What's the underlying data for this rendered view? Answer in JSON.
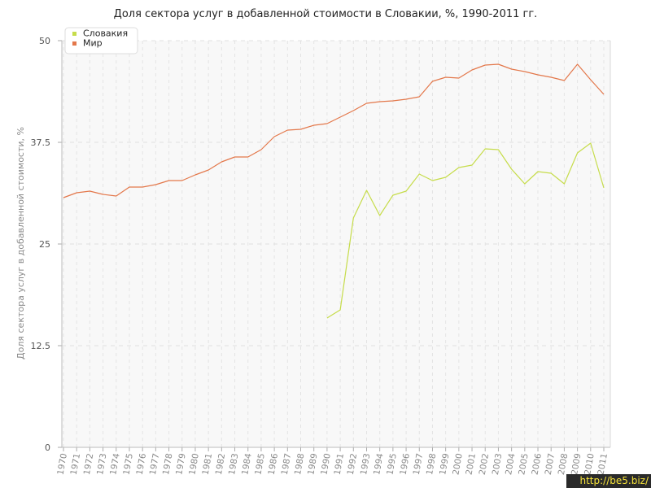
{
  "title": "Доля сектора услуг в добавленной стоимости в Словакии, %, 1990-2011 гг.",
  "watermark": "http://be5.biz/",
  "chart_data": {
    "type": "line",
    "title": "Доля сектора услуг в добавленной стоимости в Словакии, %, 1990-2011 гг.",
    "ylabel": "Доля сектора услуг в добавленной стоимости, %",
    "xlabel": "",
    "x": [
      1970,
      1971,
      1972,
      1973,
      1974,
      1975,
      1976,
      1977,
      1978,
      1979,
      1980,
      1981,
      1982,
      1983,
      1984,
      1985,
      1986,
      1987,
      1988,
      1989,
      1990,
      1991,
      1992,
      1993,
      1994,
      1995,
      1996,
      1997,
      1998,
      1999,
      2000,
      2001,
      2002,
      2003,
      2004,
      2005,
      2006,
      2007,
      2008,
      2009,
      2010,
      2011
    ],
    "ylim": [
      0,
      50
    ],
    "yticks": [
      0,
      12.5,
      25,
      37.5,
      50
    ],
    "ytick_labels": [
      "0",
      "12.5",
      "25",
      "37.5",
      "50"
    ],
    "grid": true,
    "legend_position": "top-left",
    "series": [
      {
        "name": "Словакия",
        "color": "#c6dc4a",
        "values": [
          null,
          null,
          null,
          null,
          null,
          null,
          null,
          null,
          null,
          null,
          null,
          null,
          null,
          null,
          null,
          null,
          null,
          null,
          null,
          null,
          15.9,
          16.9,
          28.2,
          31.6,
          28.5,
          31.0,
          31.5,
          33.6,
          32.8,
          33.2,
          34.4,
          34.7,
          36.7,
          36.6,
          34.2,
          32.4,
          33.9,
          33.7,
          32.4,
          36.2,
          37.4,
          31.9
        ]
      },
      {
        "name": "Мир",
        "color": "#e3774a",
        "values": [
          30.7,
          31.3,
          31.5,
          31.1,
          30.9,
          32.0,
          32.0,
          32.3,
          32.8,
          32.8,
          33.5,
          34.1,
          35.1,
          35.7,
          35.7,
          36.6,
          38.2,
          39.0,
          39.1,
          39.6,
          39.8,
          40.6,
          41.4,
          42.3,
          42.5,
          42.6,
          42.8,
          43.1,
          45.0,
          45.5,
          45.4,
          46.4,
          47.0,
          47.1,
          46.5,
          46.2,
          45.8,
          45.5,
          45.1,
          47.1,
          45.2,
          43.4
        ]
      }
    ]
  }
}
